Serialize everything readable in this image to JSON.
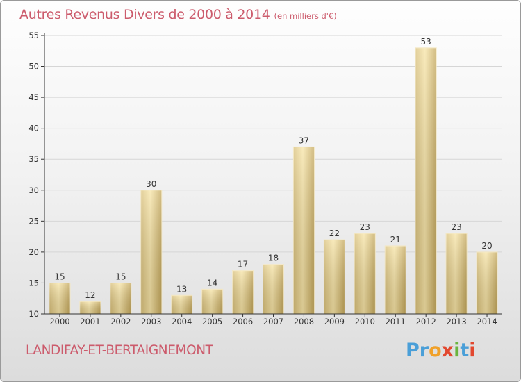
{
  "title": "Autres Revenus Divers de 2000 à 2014",
  "subtitle": "(en milliers d'€)",
  "commune": "LANDIFAY-ET-BERTAIGNEMONT",
  "logo": {
    "p1": "Pr",
    "p2": "o",
    "p3": "x",
    "p4": "i",
    "p5": "t",
    "p6": "i"
  },
  "colors": {
    "title": "#cc5b6c",
    "bar_light": "#f5e0a0",
    "bar_dark": "#c9ad62",
    "axis": "#333333",
    "grid": "#d6d6d6"
  },
  "chart_data": {
    "type": "bar",
    "categories": [
      "2000",
      "2001",
      "2002",
      "2003",
      "2004",
      "2005",
      "2006",
      "2007",
      "2008",
      "2009",
      "2010",
      "2011",
      "2012",
      "2013",
      "2014"
    ],
    "values": [
      15,
      12,
      15,
      30,
      13,
      14,
      17,
      18,
      37,
      22,
      23,
      21,
      53,
      23,
      20
    ],
    "ylim": [
      10,
      55
    ],
    "yticks": [
      10,
      15,
      20,
      25,
      30,
      35,
      40,
      45,
      50,
      55
    ],
    "grid": true,
    "data_labels": true
  }
}
